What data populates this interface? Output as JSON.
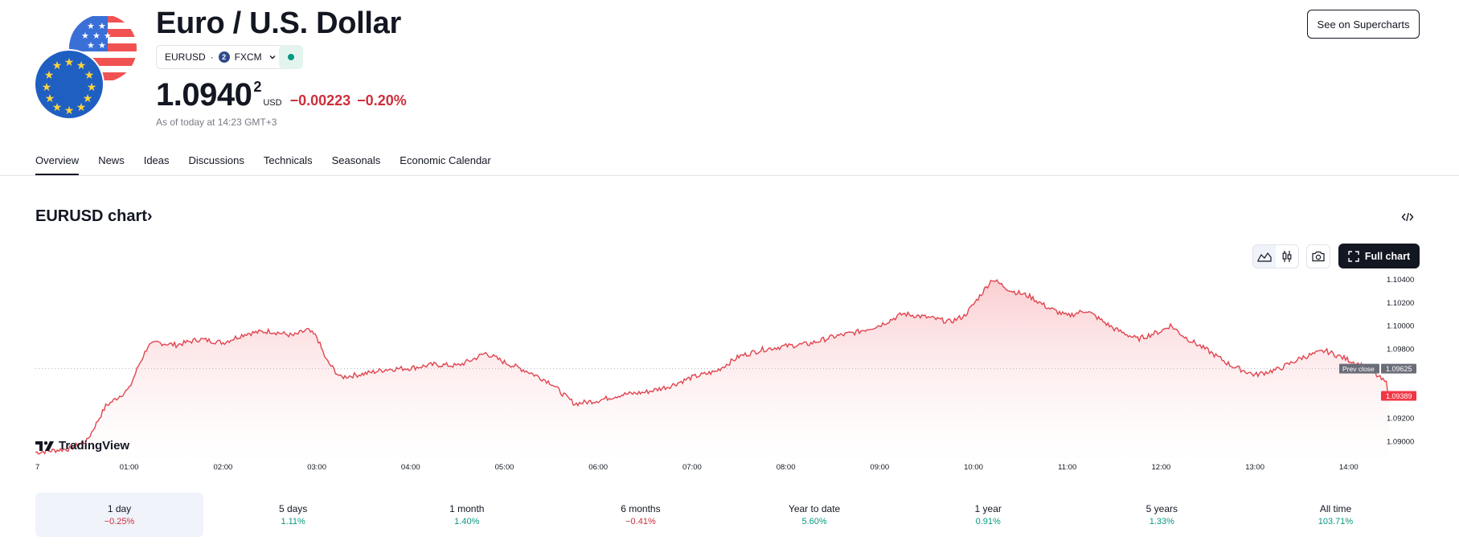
{
  "header": {
    "title": "Euro / U.S. Dollar",
    "symbol": "EURUSD",
    "exchange_badge": "2",
    "exchange": "FXCM",
    "supercharts_label": "See on Supercharts",
    "price_main": "1.0940",
    "price_sup": "2",
    "currency": "USD",
    "change": "−0.00223",
    "change_pct": "−0.20%",
    "as_of": "As of today at 14:23 GMT+3",
    "negative_color": "#cc2f3c",
    "positive_color": "#089981",
    "market_status_color": "#089981"
  },
  "tabs": [
    {
      "label": "Overview",
      "active": true
    },
    {
      "label": "News"
    },
    {
      "label": "Ideas"
    },
    {
      "label": "Discussions"
    },
    {
      "label": "Technicals"
    },
    {
      "label": "Seasonals"
    },
    {
      "label": "Economic Calendar"
    }
  ],
  "chart_section": {
    "title": "EURUSD chart",
    "title_chevron": "›",
    "embed_icon": "code-icon",
    "full_chart_label": "Full chart",
    "brand": "TradingView"
  },
  "chart_data": {
    "type": "area",
    "x_unit": "time (GMT+3), hours",
    "x_ticks": [
      "7",
      "01:00",
      "02:00",
      "03:00",
      "04:00",
      "05:00",
      "06:00",
      "07:00",
      "08:00",
      "09:00",
      "10:00",
      "11:00",
      "12:00",
      "13:00",
      "14:00"
    ],
    "y_ticks": [
      "1.10400",
      "1.10200",
      "1.10000",
      "1.09800",
      "1.09200",
      "1.09000"
    ],
    "ylim": [
      1.0885,
      1.1045
    ],
    "prev_close": {
      "label": "Prev close",
      "value": "1.09625"
    },
    "last_price": "1.09389",
    "line_color": "#e0454f",
    "grid": false,
    "series": [
      {
        "points": [
          [
            0.0,
            1.089
          ],
          [
            0.35,
            1.0893
          ],
          [
            0.55,
            1.09
          ],
          [
            0.75,
            1.093
          ],
          [
            1.0,
            1.0945
          ],
          [
            1.1,
            1.0965
          ],
          [
            1.2,
            1.0982
          ],
          [
            1.3,
            1.0985
          ],
          [
            1.5,
            1.0983
          ],
          [
            1.75,
            1.0988
          ],
          [
            2.0,
            1.0985
          ],
          [
            2.25,
            1.0993
          ],
          [
            2.5,
            1.0995
          ],
          [
            2.75,
            1.0991
          ],
          [
            2.9,
            1.0996
          ],
          [
            3.0,
            1.099
          ],
          [
            3.1,
            1.097
          ],
          [
            3.25,
            1.0955
          ],
          [
            3.5,
            1.0958
          ],
          [
            3.75,
            1.0962
          ],
          [
            4.0,
            1.0963
          ],
          [
            4.25,
            1.0966
          ],
          [
            4.5,
            1.0965
          ],
          [
            4.65,
            1.097
          ],
          [
            4.8,
            1.0976
          ],
          [
            5.0,
            1.0968
          ],
          [
            5.25,
            1.096
          ],
          [
            5.5,
            1.095
          ],
          [
            5.6,
            1.0942
          ],
          [
            5.75,
            1.0932
          ],
          [
            6.0,
            1.0935
          ],
          [
            6.25,
            1.094
          ],
          [
            6.5,
            1.0942
          ],
          [
            6.75,
            1.0947
          ],
          [
            7.0,
            1.0955
          ],
          [
            7.25,
            1.096
          ],
          [
            7.5,
            1.0973
          ],
          [
            7.75,
            1.0979
          ],
          [
            8.0,
            1.0982
          ],
          [
            8.25,
            1.0984
          ],
          [
            8.5,
            1.099
          ],
          [
            8.75,
            1.0994
          ],
          [
            9.0,
            1.1
          ],
          [
            9.25,
            1.101
          ],
          [
            9.5,
            1.1007
          ],
          [
            9.75,
            1.1003
          ],
          [
            9.9,
            1.1008
          ],
          [
            10.0,
            1.1018
          ],
          [
            10.2,
            1.104
          ],
          [
            10.4,
            1.103
          ],
          [
            10.6,
            1.1025
          ],
          [
            10.8,
            1.1015
          ],
          [
            11.0,
            1.1008
          ],
          [
            11.2,
            1.1013
          ],
          [
            11.5,
            1.0997
          ],
          [
            11.75,
            1.0988
          ],
          [
            12.0,
            1.0995
          ],
          [
            12.1,
            1.1
          ],
          [
            12.25,
            1.099
          ],
          [
            12.5,
            1.0978
          ],
          [
            12.75,
            1.0965
          ],
          [
            13.0,
            1.0957
          ],
          [
            13.25,
            1.0962
          ],
          [
            13.5,
            1.0972
          ],
          [
            13.75,
            1.0978
          ],
          [
            14.0,
            1.097
          ],
          [
            14.2,
            1.0963
          ],
          [
            14.4,
            1.095
          ],
          [
            14.43,
            1.09389
          ]
        ]
      }
    ]
  },
  "periods": [
    {
      "label": "1 day",
      "value": "−0.25%",
      "dir": "neg",
      "active": true
    },
    {
      "label": "5 days",
      "value": "1.11%",
      "dir": "pos"
    },
    {
      "label": "1 month",
      "value": "1.40%",
      "dir": "pos"
    },
    {
      "label": "6 months",
      "value": "−0.41%",
      "dir": "neg"
    },
    {
      "label": "Year to date",
      "value": "5.60%",
      "dir": "pos"
    },
    {
      "label": "1 year",
      "value": "0.91%",
      "dir": "pos"
    },
    {
      "label": "5 years",
      "value": "1.33%",
      "dir": "pos"
    },
    {
      "label": "All time",
      "value": "103.71%",
      "dir": "pos"
    }
  ]
}
